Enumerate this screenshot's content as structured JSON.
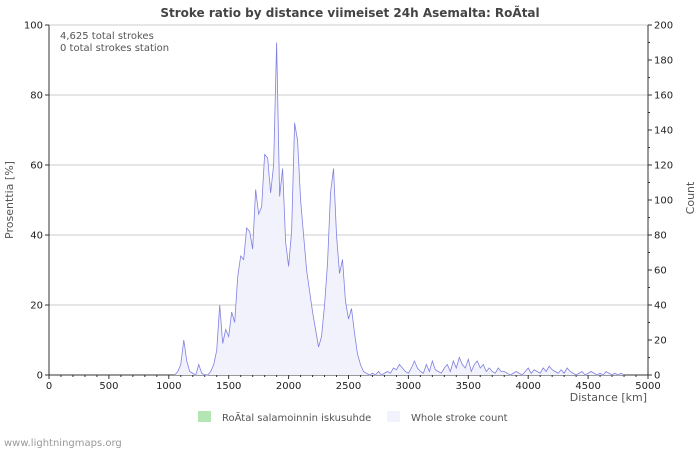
{
  "chart_data": {
    "type": "area",
    "title": "Stroke ratio by distance viimeiset 24h Asemalta: RoÃtal",
    "xlabel": "Distance   [km]",
    "ylabel_left": "Prosenttia   [%]",
    "ylabel_right": "Count",
    "xlim": [
      0,
      5000
    ],
    "ylim_left": [
      0,
      100
    ],
    "ylim_right": [
      0,
      200
    ],
    "x_ticks": [
      0,
      500,
      1000,
      1500,
      2000,
      2500,
      3000,
      3500,
      4000,
      4500,
      5000
    ],
    "y_ticks_left": [
      0,
      20,
      40,
      60,
      80,
      100
    ],
    "y_ticks_right": [
      0,
      20,
      40,
      60,
      80,
      100,
      120,
      140,
      160,
      180,
      200
    ],
    "annotations": [
      "4,625 total strokes",
      "0 total strokes station"
    ],
    "series": [
      {
        "name": "RoÃtal salamoinnin iskusuhde",
        "axis": "left",
        "color": "#b3e6b3",
        "x": [],
        "values": []
      },
      {
        "name": "Whole stroke count",
        "axis": "right",
        "color": "#8080e0",
        "fill": "#f2f2fc",
        "x": [
          1050,
          1075,
          1100,
          1125,
          1150,
          1175,
          1200,
          1225,
          1250,
          1275,
          1300,
          1325,
          1350,
          1375,
          1400,
          1425,
          1450,
          1475,
          1500,
          1525,
          1550,
          1575,
          1600,
          1625,
          1650,
          1675,
          1700,
          1725,
          1750,
          1775,
          1800,
          1825,
          1850,
          1875,
          1900,
          1925,
          1950,
          1975,
          2000,
          2025,
          2050,
          2075,
          2100,
          2125,
          2150,
          2175,
          2200,
          2225,
          2250,
          2275,
          2300,
          2325,
          2350,
          2375,
          2400,
          2425,
          2450,
          2475,
          2500,
          2525,
          2550,
          2575,
          2600,
          2625,
          2650,
          2675,
          2700,
          2725,
          2750,
          2775,
          2800,
          2825,
          2850,
          2875,
          2900,
          2925,
          2950,
          2975,
          3000,
          3025,
          3050,
          3075,
          3100,
          3125,
          3150,
          3175,
          3200,
          3225,
          3250,
          3275,
          3300,
          3325,
          3350,
          3375,
          3400,
          3425,
          3450,
          3475,
          3500,
          3525,
          3550,
          3575,
          3600,
          3625,
          3650,
          3675,
          3700,
          3725,
          3750,
          3775,
          3800,
          3825,
          3850,
          3875,
          3900,
          3925,
          3950,
          3975,
          4000,
          4025,
          4050,
          4075,
          4100,
          4125,
          4150,
          4175,
          4200,
          4225,
          4250,
          4275,
          4300,
          4325,
          4350,
          4375,
          4400,
          4425,
          4450,
          4475,
          4500,
          4525,
          4550,
          4575,
          4600,
          4625,
          4650,
          4675,
          4700,
          4725,
          4750,
          4775,
          4800
        ],
        "values": [
          0,
          2,
          6,
          20,
          8,
          2,
          1,
          0,
          6,
          1,
          0,
          0,
          2,
          6,
          14,
          40,
          18,
          26,
          22,
          36,
          30,
          56,
          68,
          66,
          84,
          82,
          72,
          106,
          92,
          96,
          126,
          124,
          104,
          120,
          190,
          102,
          118,
          76,
          62,
          82,
          144,
          134,
          100,
          80,
          60,
          48,
          36,
          26,
          16,
          22,
          40,
          64,
          104,
          118,
          80,
          58,
          66,
          42,
          32,
          38,
          24,
          12,
          6,
          2,
          1,
          0,
          1,
          0,
          2,
          0,
          1,
          2,
          1,
          4,
          3,
          6,
          4,
          2,
          1,
          4,
          8,
          4,
          2,
          1,
          6,
          2,
          8,
          3,
          2,
          1,
          4,
          6,
          2,
          8,
          4,
          10,
          6,
          4,
          9,
          2,
          6,
          8,
          4,
          6,
          2,
          4,
          2,
          1,
          4,
          2,
          2,
          1,
          0,
          1,
          2,
          1,
          0,
          2,
          4,
          1,
          3,
          2,
          1,
          4,
          2,
          5,
          3,
          2,
          1,
          3,
          1,
          4,
          2,
          1,
          0,
          1,
          2,
          0,
          1,
          2,
          1,
          0,
          1,
          0,
          2,
          1,
          0,
          1,
          0,
          1,
          0
        ]
      }
    ]
  },
  "credit": "www.lightningmaps.org"
}
